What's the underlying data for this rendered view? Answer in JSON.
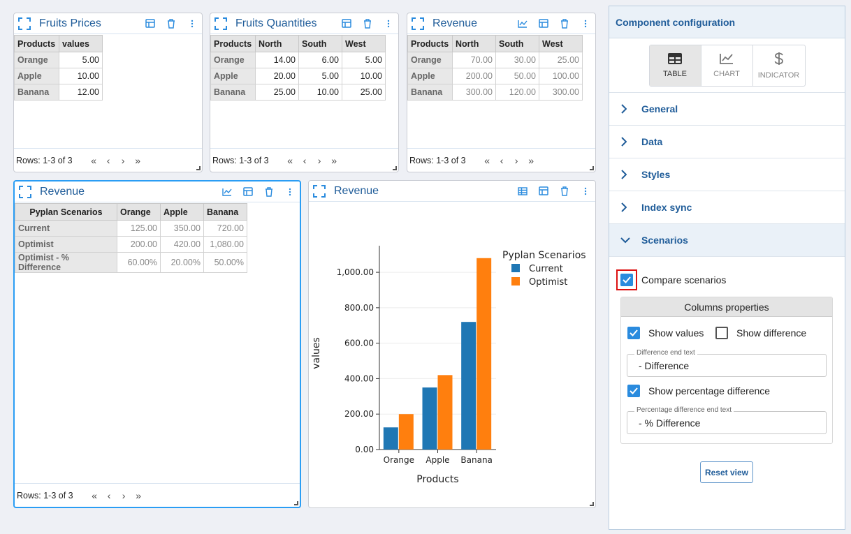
{
  "pager": {
    "rows_label": "Rows: 1-3 of 3",
    "first": "«",
    "prev": "‹",
    "next": "›",
    "last": "»"
  },
  "fruits_prices": {
    "title": "Fruits Prices",
    "headers": [
      "Products",
      "values"
    ],
    "rows": [
      [
        "Orange",
        "5.00"
      ],
      [
        "Apple",
        "10.00"
      ],
      [
        "Banana",
        "12.00"
      ]
    ]
  },
  "fruits_quantities": {
    "title": "Fruits Quantities",
    "headers": [
      "Products",
      "North",
      "South",
      "West"
    ],
    "rows": [
      [
        "Orange",
        "14.00",
        "6.00",
        "5.00"
      ],
      [
        "Apple",
        "20.00",
        "5.00",
        "10.00"
      ],
      [
        "Banana",
        "25.00",
        "10.00",
        "25.00"
      ]
    ]
  },
  "revenue_region": {
    "title": "Revenue",
    "headers": [
      "Products",
      "North",
      "South",
      "West"
    ],
    "rows": [
      [
        "Orange",
        "70.00",
        "30.00",
        "25.00"
      ],
      [
        "Apple",
        "200.00",
        "50.00",
        "100.00"
      ],
      [
        "Banana",
        "300.00",
        "120.00",
        "300.00"
      ]
    ]
  },
  "revenue_scenarios": {
    "title": "Revenue",
    "headers": [
      "Pyplan Scenarios",
      "Orange",
      "Apple",
      "Banana"
    ],
    "rows": [
      [
        "Current",
        "125.00",
        "350.00",
        "720.00"
      ],
      [
        "Optimist",
        "200.00",
        "420.00",
        "1,080.00"
      ],
      [
        "Optimist - % Difference",
        "60.00%",
        "20.00%",
        "50.00%"
      ]
    ]
  },
  "revenue_chart": {
    "title": "Revenue"
  },
  "chart_data": {
    "type": "bar",
    "categories": [
      "Orange",
      "Apple",
      "Banana"
    ],
    "series": [
      {
        "name": "Current",
        "values": [
          125,
          350,
          720
        ],
        "color": "#1f77b4"
      },
      {
        "name": "Optimist",
        "values": [
          200,
          420,
          1080
        ],
        "color": "#ff7f0e"
      }
    ],
    "xlabel": "Products",
    "ylabel": "values",
    "legend_title": "Pyplan Scenarios",
    "legend_position": "top-right",
    "ylim": [
      0,
      1150
    ],
    "yticks": [
      0,
      200,
      400,
      600,
      800,
      1000
    ],
    "ytick_labels": [
      "0.00",
      "200.00",
      "400.00",
      "600.00",
      "800.00",
      "1,000.00"
    ],
    "grid": true
  },
  "config": {
    "title": "Component configuration",
    "view_buttons": [
      "TABLE",
      "CHART",
      "INDICATOR"
    ],
    "sections": [
      "General",
      "Data",
      "Styles",
      "Index sync",
      "Scenarios"
    ],
    "compare_label": "Compare scenarios",
    "columns_title": "Columns properties",
    "show_values": "Show values",
    "show_difference": "Show difference",
    "diff_text_label": "Difference end text",
    "diff_text_value": "- Difference",
    "show_pct": "Show percentage difference",
    "pct_text_label": "Percentage difference end text",
    "pct_text_value": "- % Difference",
    "reset": "Reset view"
  }
}
